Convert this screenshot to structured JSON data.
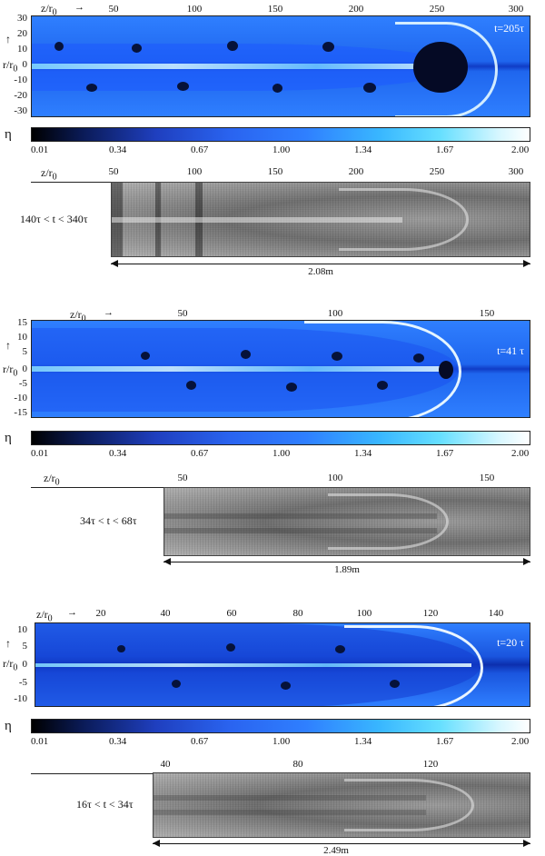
{
  "labels": {
    "z": "z/r",
    "z_sub": "0",
    "r": "r/r",
    "r_sub": "0",
    "eta": "η",
    "arrow_right": "→",
    "arrow_up": "↑"
  },
  "panels": [
    {
      "time": "t=205τ",
      "sim_x_ticks": [
        "50",
        "100",
        "150",
        "200",
        "250",
        "300"
      ],
      "sim_y_ticks": [
        "30",
        "20",
        "10",
        "0",
        "-10",
        "-20",
        "-30"
      ],
      "colorbar_ticks": [
        "0.01",
        "0.34",
        "0.67",
        "1.00",
        "1.34",
        "1.67",
        "2.00"
      ],
      "exp_x_ticks": [
        "50",
        "100",
        "150",
        "200",
        "250",
        "300"
      ],
      "time_range": "140τ < t < 340τ",
      "scale": "2.08m"
    },
    {
      "time": "t=41 τ",
      "sim_x_ticks": [
        "50",
        "100",
        "150"
      ],
      "sim_y_ticks": [
        "15",
        "10",
        "5",
        "0",
        "-5",
        "-10",
        "-15"
      ],
      "colorbar_ticks": [
        "0.01",
        "0.34",
        "0.67",
        "1.00",
        "1.34",
        "1.67",
        "2.00"
      ],
      "exp_x_ticks": [
        "50",
        "100",
        "150"
      ],
      "time_range": "34τ < t < 68τ",
      "scale": "1.89m"
    },
    {
      "time": "t=20 τ",
      "sim_x_ticks": [
        "20",
        "40",
        "60",
        "80",
        "100",
        "120",
        "140"
      ],
      "sim_y_ticks": [
        "10",
        "5",
        "0",
        "-5",
        "-10"
      ],
      "colorbar_ticks": [
        "0.01",
        "0.34",
        "0.67",
        "1.00",
        "1.34",
        "1.67",
        "2.00"
      ],
      "exp_x_ticks": [
        "40",
        "80",
        "120"
      ],
      "time_range": "16τ < t < 34τ",
      "scale": "2.49m"
    }
  ]
}
